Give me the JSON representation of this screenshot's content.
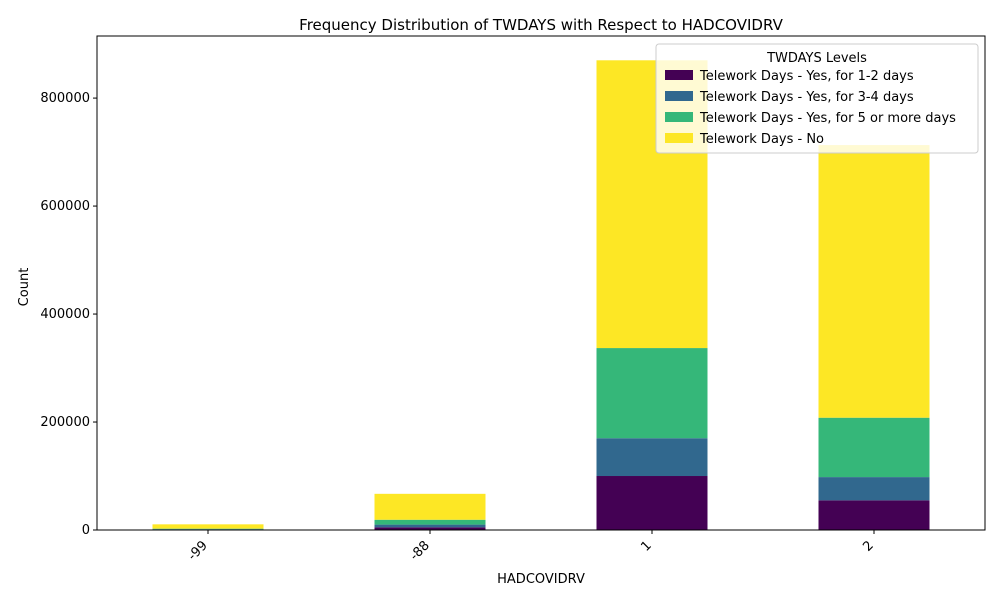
{
  "chart_data": {
    "type": "bar",
    "stacked": true,
    "title": "Frequency Distribution of TWDAYS with Respect to HADCOVIDRV",
    "xlabel": "HADCOVIDRV",
    "ylabel": "Count",
    "categories": [
      "-99",
      "-88",
      "1",
      "2"
    ],
    "ylim": [
      0,
      915000
    ],
    "yticks": [
      0,
      200000,
      400000,
      600000,
      800000
    ],
    "grid": false,
    "legend": {
      "title": "TWDAYS Levels",
      "position": "top-right"
    },
    "series": [
      {
        "name": "Telework Days - Yes, for 1-2 days",
        "color": "#440154",
        "values": [
          1000,
          5000,
          100000,
          55000
        ]
      },
      {
        "name": "Telework Days - Yes, for 3-4 days",
        "color": "#31688e",
        "values": [
          500,
          5000,
          70000,
          43000
        ]
      },
      {
        "name": "Telework Days - Yes, for 5 or more days",
        "color": "#35b779",
        "values": [
          1000,
          9000,
          167000,
          110000
        ]
      },
      {
        "name": "Telework Days - No",
        "color": "#fde725",
        "values": [
          8000,
          48000,
          533000,
          505000
        ]
      }
    ]
  }
}
